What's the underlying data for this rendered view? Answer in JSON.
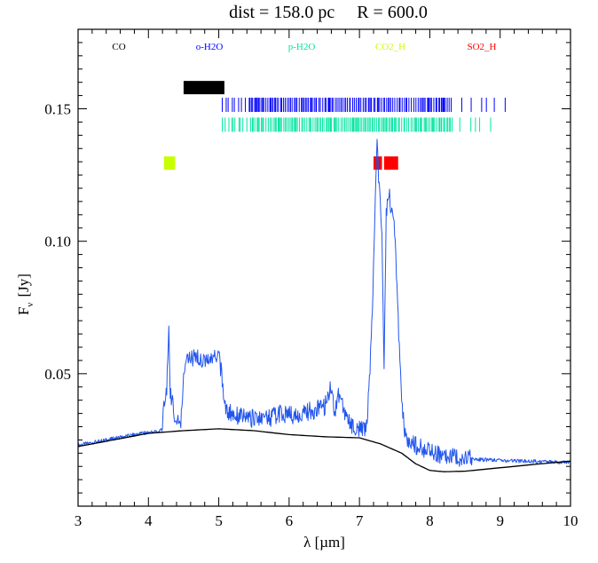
{
  "chart_data": {
    "type": "line",
    "title": "dist = 158.0 pc     R = 600.0",
    "xlabel": "λ [µm]",
    "ylabel": "F",
    "ylabel_sub": "ν",
    "ylabel_unit": "[Jy]",
    "xlim": [
      3,
      10
    ],
    "ylim": [
      0,
      0.18
    ],
    "x_ticks": [
      3,
      4,
      5,
      6,
      7,
      8,
      9,
      10
    ],
    "y_ticks": [
      0.05,
      0.1,
      0.15
    ],
    "y_tick_labels": [
      "0.05",
      "0.10",
      "0.15"
    ],
    "grid": false,
    "legend": [
      {
        "name": "CO",
        "color": "#000000"
      },
      {
        "name": "o-H2O",
        "color": "#0000ff"
      },
      {
        "name": "p-H2O",
        "color": "#00e5a0"
      },
      {
        "name": "CO2_H",
        "color": "#c8ff00"
      },
      {
        "name": "SO2_H",
        "color": "#ff0000"
      }
    ],
    "line_markers": [
      {
        "species": "CO",
        "color": "#000000",
        "y": 0.158,
        "x_ranges": [
          [
            4.5,
            5.08
          ]
        ]
      },
      {
        "species": "o-H2O",
        "color": "#0000ff",
        "y": 0.1515,
        "x_ranges": [
          [
            5.05,
            9.1
          ]
        ]
      },
      {
        "species": "p-H2O",
        "color": "#00e5a0",
        "y": 0.144,
        "x_ranges": [
          [
            5.05,
            8.95
          ]
        ]
      },
      {
        "species": "CO2_H",
        "color": "#c8ff00",
        "y": 0.1295,
        "x_ranges": [
          [
            4.22,
            4.38
          ]
        ]
      },
      {
        "species": "SO2_H",
        "color": "#ff0000",
        "y": 0.1295,
        "x_ranges": [
          [
            7.2,
            7.32
          ],
          [
            7.35,
            7.55
          ]
        ]
      }
    ],
    "series": [
      {
        "color": "#2255ee",
        "x": [
          3.0,
          3.3,
          3.6,
          3.9,
          4.1,
          4.2,
          4.22,
          4.26,
          4.29,
          4.31,
          4.35,
          4.38,
          4.42,
          4.46,
          4.5,
          4.55,
          4.6,
          4.7,
          4.8,
          4.9,
          5.0,
          5.05,
          5.1,
          5.3,
          5.5,
          5.7,
          5.9,
          6.1,
          6.3,
          6.5,
          6.6,
          6.65,
          6.7,
          6.8,
          6.9,
          7.0,
          7.1,
          7.15,
          7.2,
          7.25,
          7.28,
          7.32,
          7.35,
          7.38,
          7.42,
          7.46,
          7.5,
          7.55,
          7.6,
          7.65,
          7.7,
          7.8,
          7.9,
          8.0,
          8.2,
          8.5,
          8.8,
          9.0,
          9.3,
          9.6,
          10.0
        ],
        "y": [
          0.023,
          0.0245,
          0.026,
          0.0275,
          0.028,
          0.029,
          0.04,
          0.042,
          0.07,
          0.042,
          0.04,
          0.031,
          0.031,
          0.032,
          0.05,
          0.056,
          0.055,
          0.057,
          0.055,
          0.056,
          0.058,
          0.047,
          0.036,
          0.034,
          0.033,
          0.033,
          0.035,
          0.034,
          0.036,
          0.037,
          0.045,
          0.036,
          0.043,
          0.035,
          0.03,
          0.029,
          0.03,
          0.05,
          0.09,
          0.14,
          0.12,
          0.105,
          0.05,
          0.11,
          0.118,
          0.11,
          0.105,
          0.07,
          0.04,
          0.027,
          0.025,
          0.023,
          0.022,
          0.021,
          0.019,
          0.018,
          0.0175,
          0.0172,
          0.017,
          0.0168,
          0.0165
        ]
      },
      {
        "color": "#000000",
        "x": [
          3.0,
          3.5,
          4.0,
          4.5,
          5.0,
          5.5,
          6.0,
          6.5,
          7.0,
          7.3,
          7.6,
          7.8,
          8.0,
          8.2,
          8.5,
          9.0,
          9.5,
          10.0
        ],
        "y": [
          0.0225,
          0.025,
          0.0275,
          0.0285,
          0.0292,
          0.0285,
          0.027,
          0.0262,
          0.0258,
          0.0235,
          0.02,
          0.016,
          0.0135,
          0.013,
          0.0132,
          0.0145,
          0.0158,
          0.017
        ]
      }
    ]
  }
}
